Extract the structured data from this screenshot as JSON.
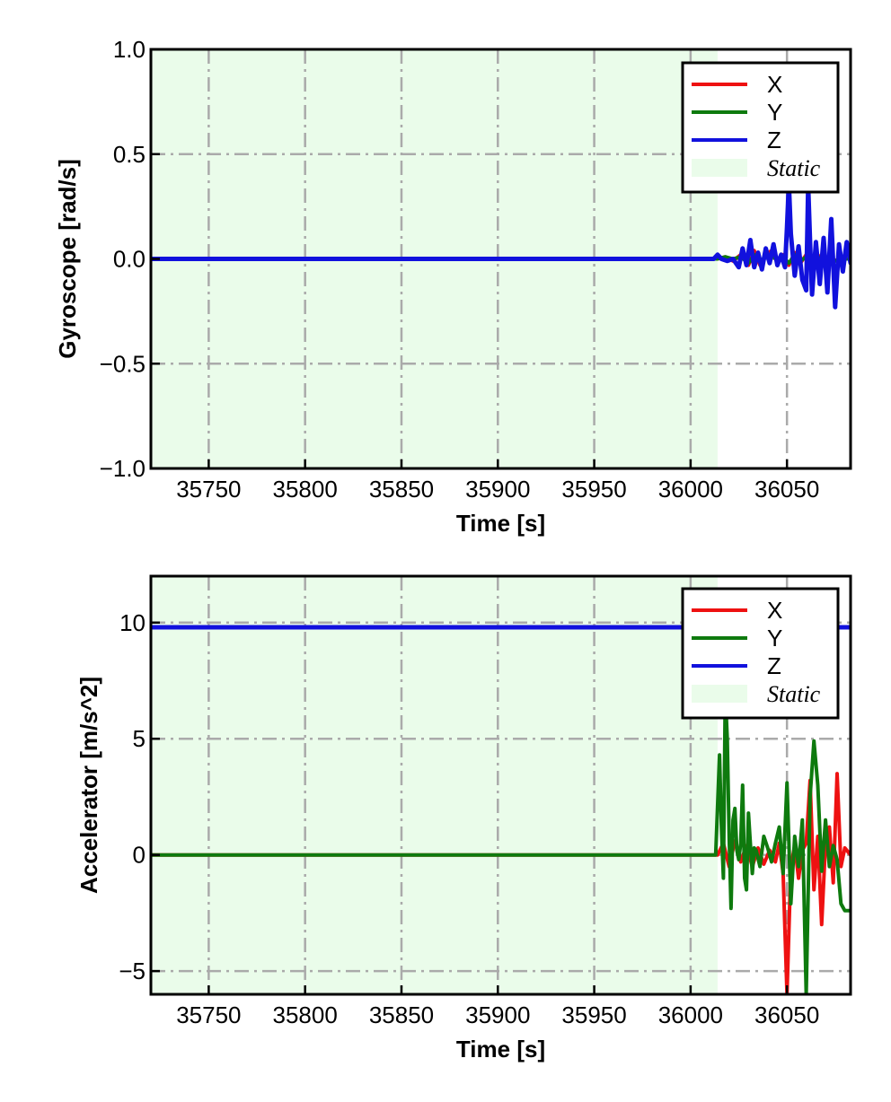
{
  "colors": {
    "X": "#ee1111",
    "Y": "#0e7a0e",
    "Z": "#1111dd",
    "static_fill": "#eafcea",
    "grid": "#aaaaaa"
  },
  "chart_data": [
    {
      "type": "line",
      "xlabel": "Time [s]",
      "ylabel": "Gyroscope [rad/s]",
      "xlim": [
        35720,
        36083
      ],
      "ylim": [
        -1.0,
        1.0
      ],
      "xticks": [
        35750,
        35800,
        35850,
        35900,
        35950,
        36000,
        36050
      ],
      "xtick_labels": [
        "35750",
        "35800",
        "35850",
        "35900",
        "35950",
        "36000",
        "36050"
      ],
      "yticks": [
        -1.0,
        -0.5,
        0.0,
        0.5,
        1.0
      ],
      "ytick_labels": [
        "−1.0",
        "−0.5",
        "0.0",
        "0.5",
        "1.0"
      ],
      "grid": true,
      "legend_position": "top-right",
      "static_region": [
        35720,
        36014
      ],
      "legend": [
        "X",
        "Y",
        "Z",
        "Static"
      ],
      "series": [
        {
          "name": "X",
          "x": [
            35720,
            36014,
            36018,
            36022,
            36026,
            36030,
            36033,
            36036,
            36039,
            36042,
            36045,
            36048,
            36051,
            36054,
            36057,
            36060,
            36063,
            36066,
            36069,
            36072,
            36075,
            36078,
            36080,
            36083
          ],
          "y": [
            0.0,
            0.0,
            0.01,
            -0.01,
            0.02,
            -0.03,
            0.04,
            -0.03,
            0.02,
            0.04,
            -0.02,
            0.02,
            -0.03,
            0.03,
            -0.02,
            0.02,
            -0.01,
            0.02,
            -0.02,
            0.01,
            -0.01,
            0.01,
            0.0,
            0.0
          ]
        },
        {
          "name": "Y",
          "x": [
            35720,
            36014,
            36018,
            36022,
            36026,
            36030,
            36033,
            36036,
            36039,
            36042,
            36045,
            36048,
            36051,
            36054,
            36057,
            36060,
            36063,
            36066,
            36069,
            36072,
            36075,
            36078,
            36080,
            36083
          ],
          "y": [
            0.0,
            0.0,
            0.01,
            0.0,
            0.01,
            -0.02,
            0.02,
            -0.01,
            0.01,
            0.02,
            -0.01,
            0.01,
            -0.02,
            0.02,
            -0.01,
            0.01,
            -0.01,
            0.01,
            -0.01,
            0.01,
            -0.01,
            0.0,
            0.0,
            0.0
          ]
        },
        {
          "name": "Z",
          "x": [
            35720,
            36012,
            36014,
            36016,
            36019,
            36022,
            36025,
            36027,
            36029,
            36031,
            36033,
            36035,
            36037,
            36039,
            36041,
            36043,
            36045,
            36047,
            36049,
            36050,
            36051,
            36052,
            36054,
            36056,
            36058,
            36060,
            36061,
            36062,
            36063,
            36065,
            36067,
            36069,
            36071,
            36073,
            36075,
            36077,
            36079,
            36081,
            36083
          ],
          "y": [
            0.0,
            0.0,
            0.02,
            0.0,
            -0.01,
            0.0,
            -0.04,
            0.05,
            -0.03,
            0.09,
            -0.04,
            0.03,
            -0.05,
            0.05,
            -0.02,
            0.07,
            -0.03,
            0.02,
            -0.04,
            0.15,
            0.36,
            0.12,
            -0.08,
            0.06,
            -0.1,
            -0.15,
            0.35,
            0.08,
            -0.17,
            0.08,
            -0.12,
            0.1,
            -0.16,
            0.19,
            -0.23,
            0.07,
            -0.06,
            0.08,
            -0.02
          ]
        }
      ]
    },
    {
      "type": "line",
      "xlabel": "Time [s]",
      "ylabel": "Accelerator [m/s^2]",
      "xlim": [
        35720,
        36083
      ],
      "ylim": [
        -6,
        12
      ],
      "xticks": [
        35750,
        35800,
        35850,
        35900,
        35950,
        36000,
        36050
      ],
      "xtick_labels": [
        "35750",
        "35800",
        "35850",
        "35900",
        "35950",
        "36000",
        "36050"
      ],
      "yticks": [
        -5,
        0,
        5,
        10
      ],
      "ytick_labels": [
        "−5",
        "0",
        "5",
        "10"
      ],
      "grid": true,
      "legend_position": "top-right",
      "static_region": [
        35720,
        36014
      ],
      "legend": [
        "X",
        "Y",
        "Z",
        "Static"
      ],
      "series": [
        {
          "name": "X",
          "x": [
            35720,
            36014,
            36017,
            36020,
            36023,
            36026,
            36029,
            36032,
            36035,
            36038,
            36041,
            36044,
            36046,
            36048,
            36050,
            36052,
            36054,
            36056,
            36058,
            36060,
            36062,
            36064,
            36066,
            36068,
            36070,
            36072,
            36074,
            36076,
            36078,
            36080,
            36083
          ],
          "y": [
            0.0,
            0.0,
            0.5,
            -0.5,
            0.6,
            -0.3,
            0.4,
            -0.5,
            0.3,
            -0.4,
            0.2,
            -0.3,
            0.5,
            -0.8,
            -6.0,
            -0.5,
            0.4,
            -1.0,
            0.2,
            0.5,
            3.2,
            -1.5,
            0.8,
            -3.0,
            0.5,
            1.2,
            -1.2,
            3.5,
            -0.5,
            0.3,
            0.0
          ]
        },
        {
          "name": "Y",
          "x": [
            35720,
            36013,
            36015,
            36016,
            36017,
            36018,
            36019,
            36020,
            36021,
            36022,
            36023,
            36024,
            36025,
            36026,
            36027,
            36028,
            36029,
            36030,
            36031,
            36032,
            36033,
            36034,
            36036,
            36038,
            36040,
            36042,
            36044,
            36046,
            36048,
            36050,
            36052,
            36054,
            36056,
            36058,
            36060,
            36062,
            36064,
            36066,
            36068,
            36070,
            36072,
            36074,
            36076,
            36078,
            36080,
            36083
          ],
          "y": [
            0.0,
            0.0,
            4.3,
            1.2,
            -1.0,
            7.0,
            5.0,
            0.8,
            -2.3,
            1.5,
            2.0,
            0.2,
            -0.2,
            0.5,
            3.0,
            -1.0,
            -1.5,
            1.8,
            0.5,
            -0.8,
            0.3,
            0.2,
            -0.5,
            0.8,
            0.3,
            -0.3,
            0.5,
            1.2,
            -0.8,
            3.1,
            -2.1,
            0.8,
            -0.5,
            1.5,
            -6.0,
            2.5,
            4.9,
            3.0,
            -0.7,
            1.5,
            -0.5,
            0.4,
            -0.2,
            -2.1,
            -2.4,
            -2.4
          ]
        },
        {
          "name": "Z",
          "x": [
            35720,
            36014,
            36078,
            36083
          ],
          "y": [
            9.8,
            9.8,
            9.8,
            9.8
          ]
        }
      ]
    }
  ]
}
